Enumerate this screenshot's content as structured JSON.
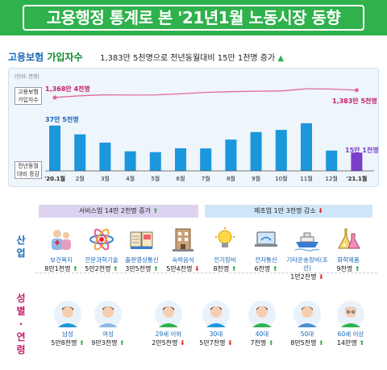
{
  "title": "고용행정 통계로 본 '21년1월 노동시장 동향",
  "section": {
    "heading_part1": "고용보험",
    "heading_part2": " 가입자수",
    "summary": "1,383만 5천명으로 전년동월대비 15만 1천명 증가",
    "summary_arrow": "up"
  },
  "chart_labels": {
    "unit": "(단위: 천명)",
    "line_label": "고용보험\n가입자수",
    "line_label_l1": "고용보험",
    "line_label_l2": "가입자수",
    "bar_label_l1": "전년동월",
    "bar_label_l2": "대비 증감",
    "start_value": "1,368만 4천명",
    "end_value": "1,383만 5천명",
    "first_bar_value": "37만 5천명",
    "last_bar_value": "15만 1천명"
  },
  "chart_data": {
    "type": "bar",
    "categories": [
      "'20.1월",
      "2월",
      "3월",
      "4월",
      "5월",
      "6월",
      "7월",
      "8월",
      "9월",
      "10월",
      "11월",
      "12월",
      "'21.1월"
    ],
    "values": [
      375,
      302,
      234,
      162,
      155,
      187,
      186,
      259,
      321,
      339,
      394,
      168,
      151
    ],
    "line_values": [
      13684,
      13720,
      13740,
      13735,
      13738,
      13760,
      13790,
      13805,
      13815,
      13820,
      13865,
      13858,
      13835
    ],
    "bar_colors": {
      "default": "#1b97dc",
      "last": "#7a3fc8"
    },
    "line_color": "#e06a9a"
  },
  "industry": {
    "label": "산업",
    "service_banner": "서비스업 14만 2천명 증가",
    "manufacturing_banner": "제조업 1만 3천명 감소",
    "items": [
      {
        "name": "보건복지",
        "value": "8만1천명",
        "dir": "up",
        "icon": "healthcare-icon"
      },
      {
        "name": "전문과학기술",
        "value": "5만2천명",
        "dir": "up",
        "icon": "atom-icon"
      },
      {
        "name": "출판영상통신",
        "value": "3만5천명",
        "dir": "up",
        "icon": "book-icon"
      },
      {
        "name": "숙박음식",
        "value": "5만4천명",
        "dir": "down",
        "icon": "building-icon"
      },
      {
        "name": "전기장비",
        "value": "8천명",
        "dir": "up",
        "icon": "lightbulb-icon"
      },
      {
        "name": "전자통신",
        "value": "6천명",
        "dir": "up",
        "icon": "laptop-icon"
      },
      {
        "name": "기타운송장비(조선)",
        "value": "1만2천명",
        "dir": "down",
        "icon": "ship-icon"
      },
      {
        "name": "화학제품",
        "value": "9천명",
        "dir": "up",
        "icon": "flask-icon"
      }
    ]
  },
  "demographics": {
    "label": "성별·연령",
    "items": [
      {
        "name": "남성",
        "value": "5만8천명",
        "dir": "up",
        "icon": "man-icon"
      },
      {
        "name": "여성",
        "value": "9만3천명",
        "dir": "up",
        "icon": "woman-icon"
      },
      {
        "name": "29세 이하",
        "value": "2만5천명",
        "dir": "down",
        "icon": "young-person-icon"
      },
      {
        "name": "30대",
        "value": "5만7천명",
        "dir": "down",
        "icon": "thirties-person-icon"
      },
      {
        "name": "40대",
        "value": "7천명",
        "dir": "up",
        "icon": "forties-person-icon"
      },
      {
        "name": "50대",
        "value": "8만5천명",
        "dir": "up",
        "icon": "fifties-person-icon"
      },
      {
        "name": "60세 이상",
        "value": "14만명",
        "dir": "up",
        "icon": "senior-person-icon"
      }
    ]
  }
}
